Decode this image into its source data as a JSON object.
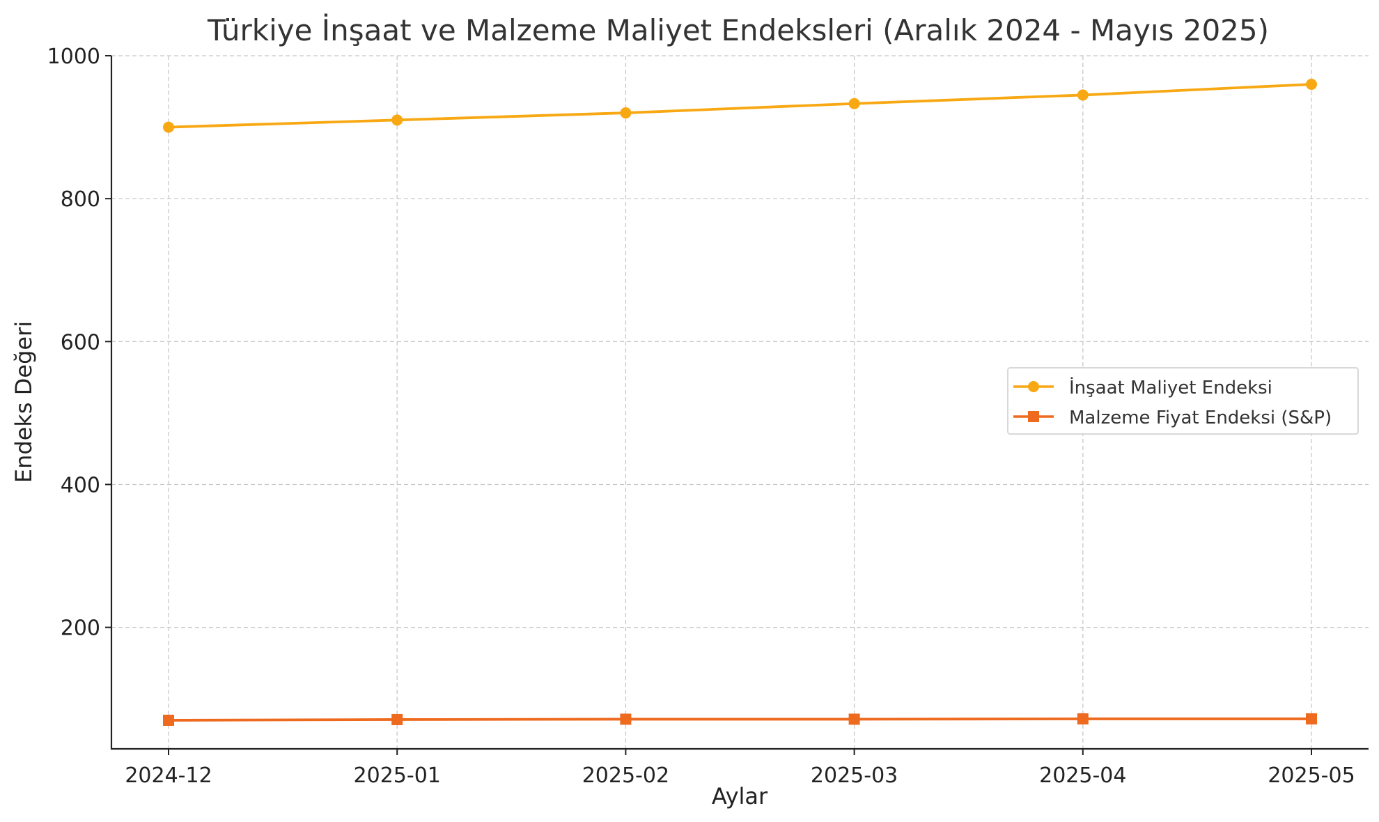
{
  "chart_data": {
    "type": "line",
    "title": "Türkiye İnşaat ve Malzeme Maliyet Endeksleri (Aralık 2024 - Mayıs 2025)",
    "xlabel": "Aylar",
    "ylabel": "Endeks Değeri",
    "categories": [
      "2024-12",
      "2025-01",
      "2025-02",
      "2025-03",
      "2025-04",
      "2025-05"
    ],
    "ylim": [
      30,
      1000
    ],
    "yticks": [
      200,
      400,
      600,
      800,
      1000
    ],
    "grid": true,
    "legend_position": "center-right",
    "series": [
      {
        "name": "İnşaat Maliyet Endeksi",
        "color": "#F7A813",
        "marker": "circle",
        "values": [
          900,
          910,
          920,
          933,
          945,
          960
        ]
      },
      {
        "name": "Malzeme Fiyat Endeksi (S&P)",
        "color": "#EE6A1F",
        "marker": "square",
        "values": [
          70,
          71,
          71.5,
          71.5,
          72,
          72
        ]
      }
    ]
  }
}
